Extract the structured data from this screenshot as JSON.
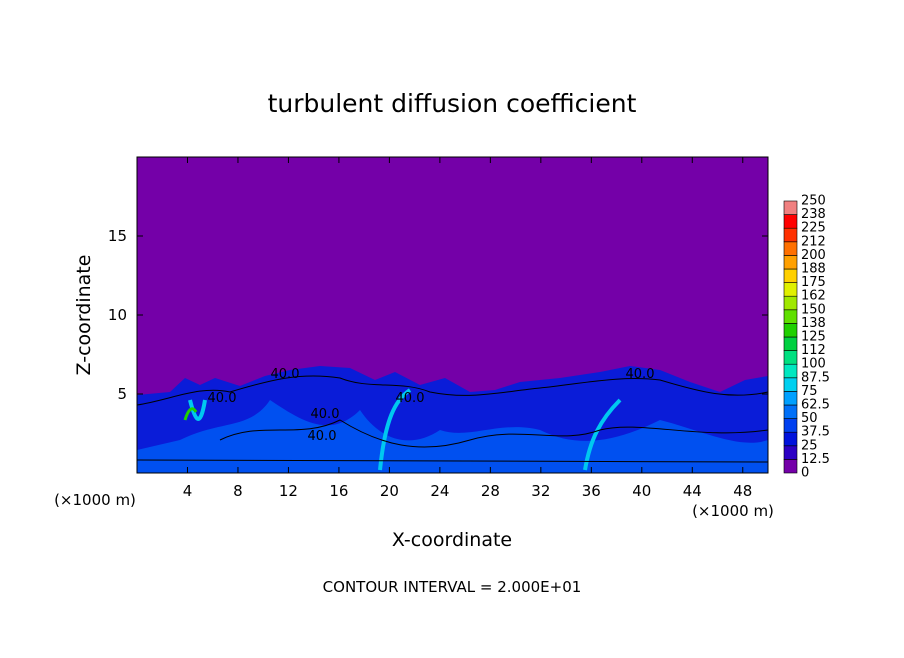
{
  "chart_data": {
    "type": "contour",
    "title": "turbulent diffusion coefficient",
    "x_label": "X-coordinate",
    "y_label": "Z-coordinate",
    "x_unit_label": "(×1000 m)",
    "y_unit_label": "(×1000 m)",
    "footnote": "CONTOUR INTERVAL = 2.000E+01",
    "xlim": [
      0,
      50
    ],
    "xticks": [
      4,
      8,
      12,
      16,
      20,
      24,
      28,
      32,
      36,
      40,
      44,
      48
    ],
    "ylim": [
      0,
      20
    ],
    "yticks": [
      5,
      10,
      15
    ],
    "contour_labels": [
      "40.0",
      "40.0",
      "40.0",
      "40.0",
      "40.0",
      "40.0"
    ],
    "colorbar_ticks": [
      0,
      12.5,
      25,
      37.5,
      50,
      62.5,
      75,
      87.5,
      100,
      112,
      125,
      138,
      150,
      162,
      175,
      188,
      200,
      212,
      225,
      238,
      250
    ],
    "colorbar_colors": [
      "#7400a8",
      "#2c00c4",
      "#0012dc",
      "#0040f0",
      "#0070f8",
      "#00a0ff",
      "#00d0f0",
      "#00e8c0",
      "#00e080",
      "#00d040",
      "#20d000",
      "#60e000",
      "#a0e800",
      "#e0f000",
      "#ffd000",
      "#ffa000",
      "#ff7000",
      "#ff3000",
      "#ff0000",
      "#f08080"
    ]
  }
}
